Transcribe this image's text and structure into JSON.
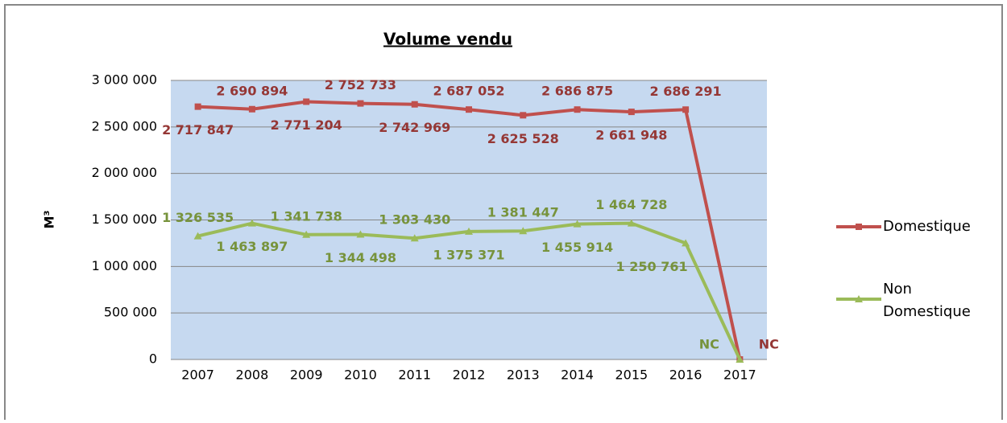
{
  "chart_data": {
    "type": "line",
    "title": "Volume vendu",
    "y_label": "M³",
    "categories": [
      "2007",
      "2008",
      "2009",
      "2010",
      "2011",
      "2012",
      "2013",
      "2014",
      "2015",
      "2016",
      "2017"
    ],
    "series": [
      {
        "name": "Domestique",
        "color": "#c0504d",
        "label_color": "#953735",
        "marker": "square",
        "values": [
          2717847,
          2690894,
          2771204,
          2752733,
          2742969,
          2687052,
          2625528,
          2686875,
          2661948,
          2686291,
          0
        ],
        "value_labels": [
          "2 717 847",
          "2 690 894",
          "2 771 204",
          "2 752 733",
          "2 742 969",
          "2 687 052",
          "2 625 528",
          "2 686 875",
          "2 661 948",
          "2 686 291",
          "NC"
        ]
      },
      {
        "name": "Non Domestique",
        "color": "#9bbb59",
        "label_color": "#77933c",
        "marker": "triangle",
        "values": [
          1326535,
          1463897,
          1341738,
          1344498,
          1303430,
          1375371,
          1381447,
          1455914,
          1464728,
          1250761,
          0
        ],
        "value_labels": [
          "1 326 535",
          "1 463 897",
          "1 341 738",
          "1 344 498",
          "1 303 430",
          "1 375 371",
          "1 381 447",
          "1 455 914",
          "1 464 728",
          "1 250 761",
          "NC"
        ]
      }
    ],
    "ylim": [
      0,
      3000000
    ],
    "yticks": [
      0,
      {
        "value": 500000,
        "label": "500 000"
      },
      {
        "value": 1000000,
        "label": "1 000 000"
      },
      {
        "value": 1500000,
        "label": "1 500 000"
      },
      {
        "value": 2000000,
        "label": "2 000 000"
      },
      {
        "value": 2500000,
        "label": "2 500 000"
      },
      {
        "value": 3000000,
        "label": "3 000 000"
      }
    ],
    "grid": true,
    "legend": "right"
  }
}
